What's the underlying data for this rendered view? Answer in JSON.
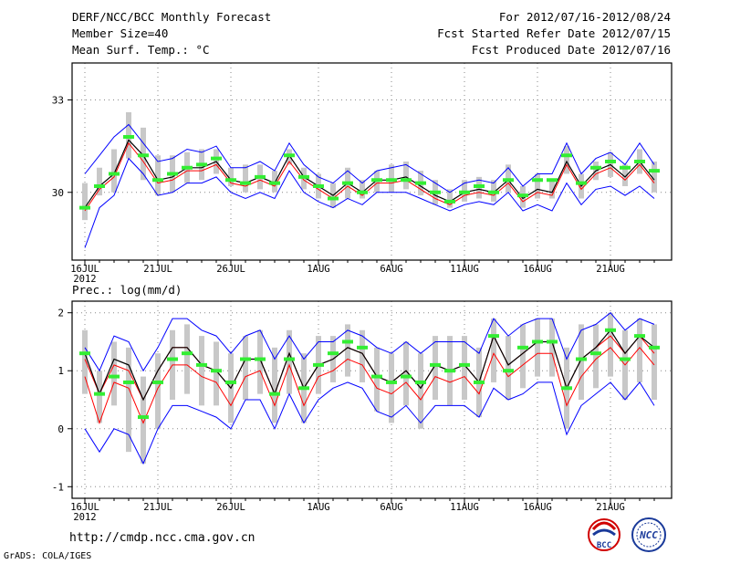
{
  "header": {
    "title": "DERF/NCC/BCC Monthly Forecast",
    "member_size": "Member Size=40",
    "variable1": "Mean Surf. Temp.: °C",
    "period": "For 2012/07/16-2012/08/24",
    "fcst_started": "Fcst Started Refer Date 2012/07/15",
    "fcst_produced": "Fcst Produced Date 2012/07/16"
  },
  "footer": {
    "url": "http://cmdp.ncc.cma.gov.cn",
    "grads_credit": "GrADS: COLA/IGES",
    "logo_bcc_text": "BCC",
    "logo_ncc_text": "NCC"
  },
  "colors": {
    "green_mark": "#33ee33",
    "red_line": "#ff0000",
    "black_line": "#000000",
    "blue_line": "#0000ff",
    "gray_bar": "#c8c8c8",
    "dot_grid": "#888888"
  },
  "chart_data": [
    {
      "type": "line",
      "title": "Mean Surf. Temp.: °C",
      "year_label": "2012",
      "xtick_labels": [
        "16JUL",
        "21JUL",
        "26JUL",
        "1AUG",
        "6AUG",
        "11AUG",
        "16AUG",
        "21AUG"
      ],
      "xtick_index": [
        0,
        5,
        10,
        16,
        21,
        26,
        31,
        36
      ],
      "ylim": [
        27.8,
        34.2
      ],
      "yticks": [
        30,
        33
      ],
      "ytick_labels": [
        "30",
        "33"
      ],
      "grid": true,
      "series": [
        {
          "name": "mean",
          "values": [
            29.5,
            30.2,
            30.6,
            31.7,
            31.2,
            30.4,
            30.5,
            30.8,
            30.8,
            31.0,
            30.4,
            30.3,
            30.5,
            30.3,
            31.2,
            30.5,
            30.2,
            29.9,
            30.3,
            30.0,
            30.4,
            30.4,
            30.5,
            30.2,
            29.9,
            29.7,
            30.0,
            30.1,
            30.0,
            30.4,
            29.8,
            30.1,
            30.0,
            31.0,
            30.2,
            30.7,
            30.9,
            30.5,
            31.0,
            30.4
          ]
        },
        {
          "name": "ensemble",
          "values": [
            29.4,
            30.1,
            30.5,
            31.6,
            31.0,
            30.3,
            30.4,
            30.7,
            30.7,
            30.9,
            30.3,
            30.2,
            30.4,
            30.2,
            31.0,
            30.4,
            30.1,
            29.8,
            30.2,
            29.9,
            30.3,
            30.3,
            30.4,
            30.1,
            29.8,
            29.6,
            29.9,
            30.0,
            29.9,
            30.3,
            29.7,
            30.0,
            29.9,
            30.9,
            30.1,
            30.6,
            30.8,
            30.4,
            30.9,
            30.3
          ]
        },
        {
          "name": "upper",
          "values": [
            30.6,
            31.2,
            31.8,
            32.2,
            31.6,
            31.0,
            31.1,
            31.4,
            31.3,
            31.5,
            30.8,
            30.8,
            31.0,
            30.7,
            31.6,
            30.9,
            30.5,
            30.3,
            30.7,
            30.3,
            30.7,
            30.8,
            30.9,
            30.6,
            30.3,
            30.0,
            30.3,
            30.4,
            30.3,
            30.8,
            30.2,
            30.6,
            30.6,
            31.6,
            30.6,
            31.1,
            31.3,
            30.9,
            31.6,
            30.9
          ]
        },
        {
          "name": "lower",
          "values": [
            28.2,
            29.5,
            29.9,
            31.1,
            30.6,
            29.9,
            30.0,
            30.3,
            30.3,
            30.5,
            30.0,
            29.8,
            30.0,
            29.8,
            30.7,
            30.0,
            29.7,
            29.5,
            29.8,
            29.6,
            30.0,
            30.0,
            30.0,
            29.8,
            29.6,
            29.4,
            29.6,
            29.7,
            29.6,
            30.0,
            29.4,
            29.6,
            29.4,
            30.3,
            29.6,
            30.1,
            30.2,
            29.9,
            30.2,
            29.8
          ]
        },
        {
          "name": "observed",
          "values": [
            29.5,
            30.2,
            30.6,
            31.8,
            31.2,
            30.4,
            30.6,
            30.8,
            30.9,
            31.1,
            30.4,
            30.3,
            30.5,
            30.3,
            31.2,
            30.5,
            30.2,
            29.8,
            30.3,
            30.0,
            30.4,
            30.4,
            30.4,
            30.3,
            30.0,
            29.7,
            30.0,
            30.2,
            30.0,
            30.4,
            29.9,
            30.4,
            30.4,
            31.2,
            30.3,
            30.8,
            31.0,
            30.8,
            31.0,
            30.7
          ]
        },
        {
          "name": "spread_hi",
          "values": [
            30.3,
            30.8,
            31.4,
            32.6,
            32.1,
            31.2,
            31.2,
            31.3,
            31.4,
            31.4,
            30.8,
            30.9,
            30.9,
            30.7,
            31.4,
            30.8,
            30.6,
            30.3,
            30.8,
            30.4,
            30.7,
            30.9,
            31.0,
            30.7,
            30.4,
            30.1,
            30.4,
            30.5,
            30.4,
            30.9,
            30.2,
            30.6,
            30.4,
            31.5,
            30.6,
            31.0,
            31.3,
            30.9,
            31.4,
            31.0
          ]
        },
        {
          "name": "spread_lo",
          "values": [
            29.1,
            29.9,
            30.0,
            31.1,
            30.4,
            29.9,
            30.0,
            30.3,
            30.4,
            30.6,
            30.2,
            30.0,
            30.1,
            30.0,
            30.9,
            30.1,
            29.8,
            29.5,
            29.8,
            29.8,
            30.0,
            30.0,
            30.1,
            29.9,
            29.6,
            29.5,
            29.7,
            29.8,
            29.7,
            30.0,
            29.5,
            29.8,
            29.8,
            30.6,
            29.8,
            30.4,
            30.5,
            30.2,
            30.6,
            30.0
          ]
        }
      ]
    },
    {
      "type": "line",
      "title": "Prec.: log(mm/d)",
      "year_label": "2012",
      "xtick_labels": [
        "16JUL",
        "21JUL",
        "26JUL",
        "1AUG",
        "6AUG",
        "11AUG",
        "16AUG",
        "21AUG"
      ],
      "xtick_index": [
        0,
        5,
        10,
        16,
        21,
        26,
        31,
        36
      ],
      "ylim": [
        -1.2,
        2.2
      ],
      "yticks": [
        -1,
        0,
        1,
        2
      ],
      "ytick_labels": [
        "-1",
        "0",
        "1",
        "2"
      ],
      "grid": true,
      "series": [
        {
          "name": "mean",
          "values": [
            1.3,
            0.6,
            1.2,
            1.1,
            0.5,
            1.0,
            1.4,
            1.4,
            1.1,
            1.0,
            0.7,
            1.2,
            1.2,
            0.6,
            1.3,
            0.7,
            1.1,
            1.2,
            1.4,
            1.3,
            0.9,
            0.8,
            1.0,
            0.7,
            1.1,
            1.0,
            1.1,
            0.8,
            1.6,
            1.1,
            1.3,
            1.5,
            1.5,
            0.7,
            1.2,
            1.4,
            1.7,
            1.3,
            1.6,
            1.4
          ]
        },
        {
          "name": "ensemble",
          "values": [
            1.2,
            0.6,
            1.1,
            1.0,
            0.5,
            1.0,
            1.4,
            1.4,
            1.1,
            1.0,
            0.7,
            1.2,
            1.2,
            0.6,
            1.3,
            0.7,
            1.1,
            1.2,
            1.4,
            1.3,
            0.9,
            0.8,
            1.0,
            0.7,
            1.1,
            1.0,
            1.1,
            0.8,
            1.6,
            1.1,
            1.3,
            1.5,
            1.5,
            0.7,
            1.2,
            1.4,
            1.6,
            1.3,
            1.6,
            1.3
          ]
        },
        {
          "name": "median",
          "values": [
            0.9,
            0.1,
            0.8,
            0.7,
            0.1,
            0.7,
            1.1,
            1.1,
            0.9,
            0.8,
            0.4,
            0.9,
            1.0,
            0.4,
            1.1,
            0.4,
            0.9,
            1.0,
            1.2,
            1.1,
            0.7,
            0.6,
            0.8,
            0.5,
            0.9,
            0.8,
            0.9,
            0.6,
            1.3,
            0.9,
            1.1,
            1.3,
            1.3,
            0.4,
            0.9,
            1.2,
            1.4,
            1.1,
            1.4,
            1.1
          ]
        },
        {
          "name": "upper",
          "values": [
            1.4,
            1.0,
            1.6,
            1.5,
            1.0,
            1.4,
            1.9,
            1.9,
            1.7,
            1.6,
            1.3,
            1.6,
            1.7,
            1.2,
            1.6,
            1.2,
            1.5,
            1.5,
            1.7,
            1.6,
            1.4,
            1.3,
            1.5,
            1.3,
            1.5,
            1.5,
            1.5,
            1.3,
            1.9,
            1.6,
            1.8,
            1.9,
            1.9,
            1.2,
            1.7,
            1.8,
            2.0,
            1.7,
            1.9,
            1.8
          ]
        },
        {
          "name": "lower",
          "values": [
            0.0,
            -0.4,
            0.0,
            -0.1,
            -0.6,
            0.0,
            0.4,
            0.4,
            0.3,
            0.2,
            0.0,
            0.5,
            0.5,
            0.0,
            0.6,
            0.1,
            0.5,
            0.7,
            0.8,
            0.7,
            0.3,
            0.2,
            0.4,
            0.1,
            0.4,
            0.4,
            0.4,
            0.2,
            0.7,
            0.5,
            0.6,
            0.8,
            0.8,
            -0.1,
            0.4,
            0.6,
            0.8,
            0.5,
            0.8,
            0.4
          ]
        },
        {
          "name": "observed",
          "values": [
            1.3,
            0.6,
            0.9,
            0.8,
            0.2,
            0.8,
            1.2,
            1.3,
            1.1,
            1.0,
            0.8,
            1.2,
            1.2,
            0.6,
            1.2,
            0.7,
            1.1,
            1.3,
            1.5,
            1.4,
            0.9,
            0.8,
            0.9,
            0.8,
            1.1,
            1.0,
            1.1,
            0.8,
            1.6,
            1.0,
            1.4,
            1.5,
            1.5,
            0.7,
            1.2,
            1.3,
            1.7,
            1.2,
            1.6,
            1.4
          ]
        },
        {
          "name": "spread_hi",
          "values": [
            1.7,
            1.0,
            1.5,
            1.4,
            0.9,
            1.3,
            1.7,
            1.8,
            1.6,
            1.5,
            1.3,
            1.6,
            1.7,
            1.4,
            1.7,
            1.3,
            1.6,
            1.6,
            1.8,
            1.7,
            1.4,
            1.3,
            1.5,
            1.3,
            1.6,
            1.6,
            1.6,
            1.4,
            1.9,
            1.6,
            1.8,
            1.9,
            1.9,
            1.4,
            1.8,
            1.8,
            2.0,
            1.7,
            1.9,
            1.8
          ]
        },
        {
          "name": "spread_lo",
          "values": [
            0.6,
            0.1,
            0.4,
            -0.4,
            -0.6,
            0.0,
            0.5,
            0.6,
            0.4,
            0.4,
            0.1,
            0.5,
            0.6,
            0.1,
            0.6,
            0.1,
            0.6,
            0.8,
            0.9,
            0.8,
            0.3,
            0.1,
            0.4,
            0.0,
            0.5,
            0.4,
            0.5,
            0.2,
            0.8,
            0.5,
            0.7,
            0.9,
            0.9,
            0.0,
            0.5,
            0.7,
            0.9,
            0.5,
            0.8,
            0.5
          ]
        }
      ]
    }
  ]
}
